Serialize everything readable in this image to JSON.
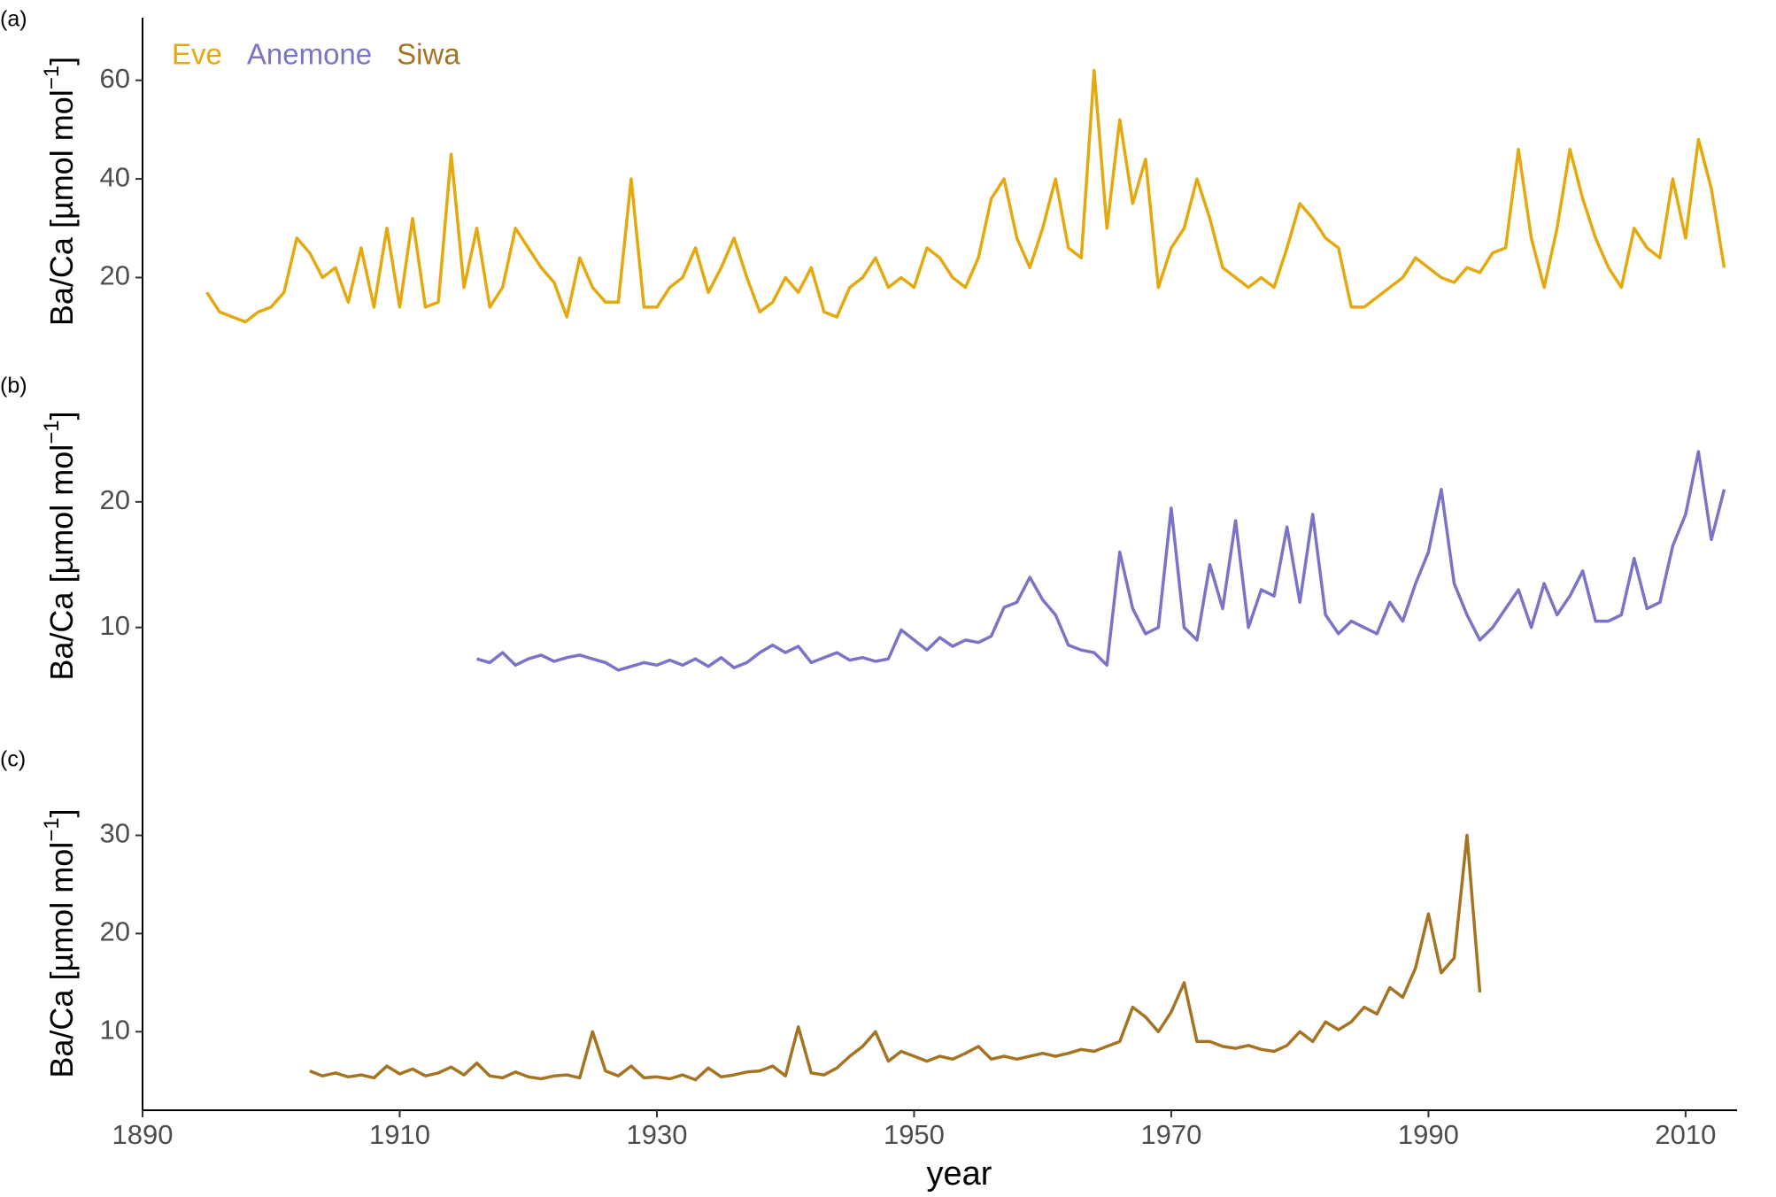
{
  "chart_data": [
    {
      "type": "line",
      "panel_label": "(a)",
      "ylabel": {
        "text": "Ba/Ca [µmol  mol",
        "superscript": "−1",
        "close": "]"
      },
      "legend": "top-left",
      "grid": false,
      "xlim": [
        1890,
        2014
      ],
      "ylim": [
        5,
        70
      ],
      "yticks": [
        20,
        40,
        60
      ],
      "series": [
        {
          "name": "Eve",
          "color": "#e5a90f",
          "x": [
            1895,
            1896,
            1897,
            1898,
            1899,
            1900,
            1901,
            1902,
            1903,
            1904,
            1905,
            1906,
            1907,
            1908,
            1909,
            1910,
            1911,
            1912,
            1913,
            1914,
            1915,
            1916,
            1917,
            1918,
            1919,
            1920,
            1921,
            1922,
            1923,
            1924,
            1925,
            1926,
            1927,
            1928,
            1929,
            1930,
            1931,
            1932,
            1933,
            1934,
            1935,
            1936,
            1937,
            1938,
            1939,
            1940,
            1941,
            1942,
            1943,
            1944,
            1945,
            1946,
            1947,
            1948,
            1949,
            1950,
            1951,
            1952,
            1953,
            1954,
            1955,
            1956,
            1957,
            1958,
            1959,
            1960,
            1961,
            1962,
            1963,
            1964,
            1965,
            1966,
            1967,
            1968,
            1969,
            1970,
            1971,
            1972,
            1973,
            1974,
            1975,
            1976,
            1977,
            1978,
            1979,
            1980,
            1981,
            1982,
            1983,
            1984,
            1985,
            1986,
            1987,
            1988,
            1989,
            1990,
            1991,
            1992,
            1993,
            1994,
            1995,
            1996,
            1997,
            1998,
            1999,
            2000,
            2001,
            2002,
            2003,
            2004,
            2005,
            2006,
            2007,
            2008,
            2009,
            2010,
            2011,
            2012,
            2013
          ],
          "values": [
            17,
            13,
            12,
            11,
            13,
            14,
            17,
            28,
            25,
            20,
            22,
            15,
            26,
            14,
            30,
            14,
            32,
            14,
            15,
            45,
            18,
            30,
            14,
            18,
            30,
            26,
            22,
            19,
            12,
            24,
            18,
            15,
            15,
            40,
            14,
            14,
            18,
            20,
            26,
            17,
            22,
            28,
            20,
            13,
            15,
            20,
            17,
            22,
            13,
            12,
            18,
            20,
            24,
            18,
            20,
            18,
            26,
            24,
            20,
            18,
            24,
            36,
            40,
            28,
            22,
            30,
            40,
            26,
            24,
            62,
            30,
            52,
            35,
            44,
            18,
            26,
            30,
            40,
            32,
            22,
            20,
            18,
            20,
            18,
            26,
            35,
            32,
            28,
            26,
            14,
            14,
            16,
            18,
            20,
            24,
            22,
            20,
            19,
            22,
            21,
            25,
            26,
            46,
            28,
            18,
            30,
            46,
            36,
            28,
            22,
            18,
            30,
            26,
            24,
            40,
            28,
            48,
            38,
            22
          ]
        }
      ]
    },
    {
      "type": "line",
      "panel_label": "(b)",
      "ylabel": {
        "text": "Ba/Ca [µmol  mol",
        "superscript": "−1",
        "close": "]"
      },
      "grid": false,
      "xlim": [
        1890,
        2014
      ],
      "ylim": [
        3,
        30
      ],
      "yticks": [
        10,
        20
      ],
      "series": [
        {
          "name": "Anemone",
          "color": "#7b74c6",
          "x": [
            1916,
            1917,
            1918,
            1919,
            1920,
            1921,
            1922,
            1923,
            1924,
            1925,
            1926,
            1927,
            1928,
            1929,
            1930,
            1931,
            1932,
            1933,
            1934,
            1935,
            1936,
            1937,
            1938,
            1939,
            1940,
            1941,
            1942,
            1943,
            1944,
            1945,
            1946,
            1947,
            1948,
            1949,
            1950,
            1951,
            1952,
            1953,
            1954,
            1955,
            1956,
            1957,
            1958,
            1959,
            1960,
            1961,
            1962,
            1963,
            1964,
            1965,
            1966,
            1967,
            1968,
            1969,
            1970,
            1971,
            1972,
            1973,
            1974,
            1975,
            1976,
            1977,
            1978,
            1979,
            1980,
            1981,
            1982,
            1983,
            1984,
            1985,
            1986,
            1987,
            1988,
            1989,
            1990,
            1991,
            1992,
            1993,
            1994,
            1995,
            1996,
            1997,
            1998,
            1999,
            2000,
            2001,
            2002,
            2003,
            2004,
            2005,
            2006,
            2007,
            2008,
            2009,
            2010,
            2011,
            2012,
            2013
          ],
          "values": [
            7.5,
            7.2,
            8,
            7,
            7.5,
            7.8,
            7.3,
            7.6,
            7.8,
            7.5,
            7.2,
            6.6,
            6.9,
            7.2,
            7,
            7.4,
            7,
            7.5,
            6.9,
            7.6,
            6.8,
            7.2,
            8,
            8.6,
            8,
            8.5,
            7.2,
            7.6,
            8,
            7.4,
            7.6,
            7.3,
            7.5,
            9.8,
            9,
            8.2,
            9.2,
            8.5,
            9,
            8.8,
            9.3,
            11.6,
            12,
            14,
            12.2,
            11,
            8.6,
            8.2,
            8,
            7,
            16,
            11.5,
            9.5,
            10,
            19.5,
            10,
            9,
            15,
            11.5,
            18.5,
            10,
            13,
            12.5,
            18,
            12,
            19,
            11,
            9.5,
            10.5,
            10,
            9.5,
            12,
            10.5,
            13.5,
            16,
            21,
            13.5,
            11,
            9,
            10,
            11.5,
            13,
            10,
            13.5,
            11,
            12.5,
            14.5,
            10.5,
            10.5,
            11,
            15.5,
            11.5,
            12,
            16.5,
            19,
            24,
            17,
            21
          ]
        }
      ]
    },
    {
      "type": "line",
      "panel_label": "(c)",
      "ylabel": {
        "text": "Ba/Ca [µmol  mol",
        "superscript": "−1",
        "close": "]"
      },
      "grid": false,
      "xlabel": "year",
      "xlim": [
        1890,
        2014
      ],
      "xticks": [
        1890,
        1910,
        1930,
        1950,
        1970,
        1990,
        2010
      ],
      "ylim": [
        2,
        36
      ],
      "yticks": [
        10,
        20,
        30
      ],
      "series": [
        {
          "name": "Siwa",
          "color": "#a57422",
          "x": [
            1903,
            1904,
            1905,
            1906,
            1907,
            1908,
            1909,
            1910,
            1911,
            1912,
            1913,
            1914,
            1915,
            1916,
            1917,
            1918,
            1919,
            1920,
            1921,
            1922,
            1923,
            1924,
            1925,
            1926,
            1927,
            1928,
            1929,
            1930,
            1931,
            1932,
            1933,
            1934,
            1935,
            1936,
            1937,
            1938,
            1939,
            1940,
            1941,
            1942,
            1943,
            1944,
            1945,
            1946,
            1947,
            1948,
            1949,
            1950,
            1951,
            1952,
            1953,
            1954,
            1955,
            1956,
            1957,
            1958,
            1959,
            1960,
            1961,
            1962,
            1963,
            1964,
            1965,
            1966,
            1967,
            1968,
            1969,
            1970,
            1971,
            1972,
            1973,
            1974,
            1975,
            1976,
            1977,
            1978,
            1979,
            1980,
            1981,
            1982,
            1983,
            1984,
            1985,
            1986,
            1987,
            1988,
            1989,
            1990,
            1991,
            1992,
            1993,
            1994
          ],
          "values": [
            6,
            5.5,
            5.8,
            5.4,
            5.6,
            5.3,
            6.5,
            5.7,
            6.2,
            5.5,
            5.8,
            6.4,
            5.6,
            6.8,
            5.5,
            5.3,
            5.9,
            5.4,
            5.2,
            5.5,
            5.6,
            5.3,
            10,
            6,
            5.5,
            6.5,
            5.3,
            5.4,
            5.2,
            5.6,
            5.1,
            6.3,
            5.4,
            5.6,
            5.9,
            6,
            6.5,
            5.5,
            10.5,
            5.8,
            5.6,
            6.3,
            7.5,
            8.5,
            10,
            7,
            8,
            7.5,
            7,
            7.5,
            7.2,
            7.8,
            8.5,
            7.2,
            7.5,
            7.2,
            7.5,
            7.8,
            7.5,
            7.8,
            8.2,
            8,
            8.5,
            9,
            12.5,
            11.5,
            10,
            12,
            15,
            9,
            9,
            8.5,
            8.3,
            8.6,
            8.2,
            8,
            8.6,
            10,
            9,
            11,
            10.2,
            11,
            12.5,
            11.8,
            14.5,
            13.5,
            16.5,
            22,
            16,
            17.5,
            30,
            14
          ]
        }
      ]
    }
  ]
}
